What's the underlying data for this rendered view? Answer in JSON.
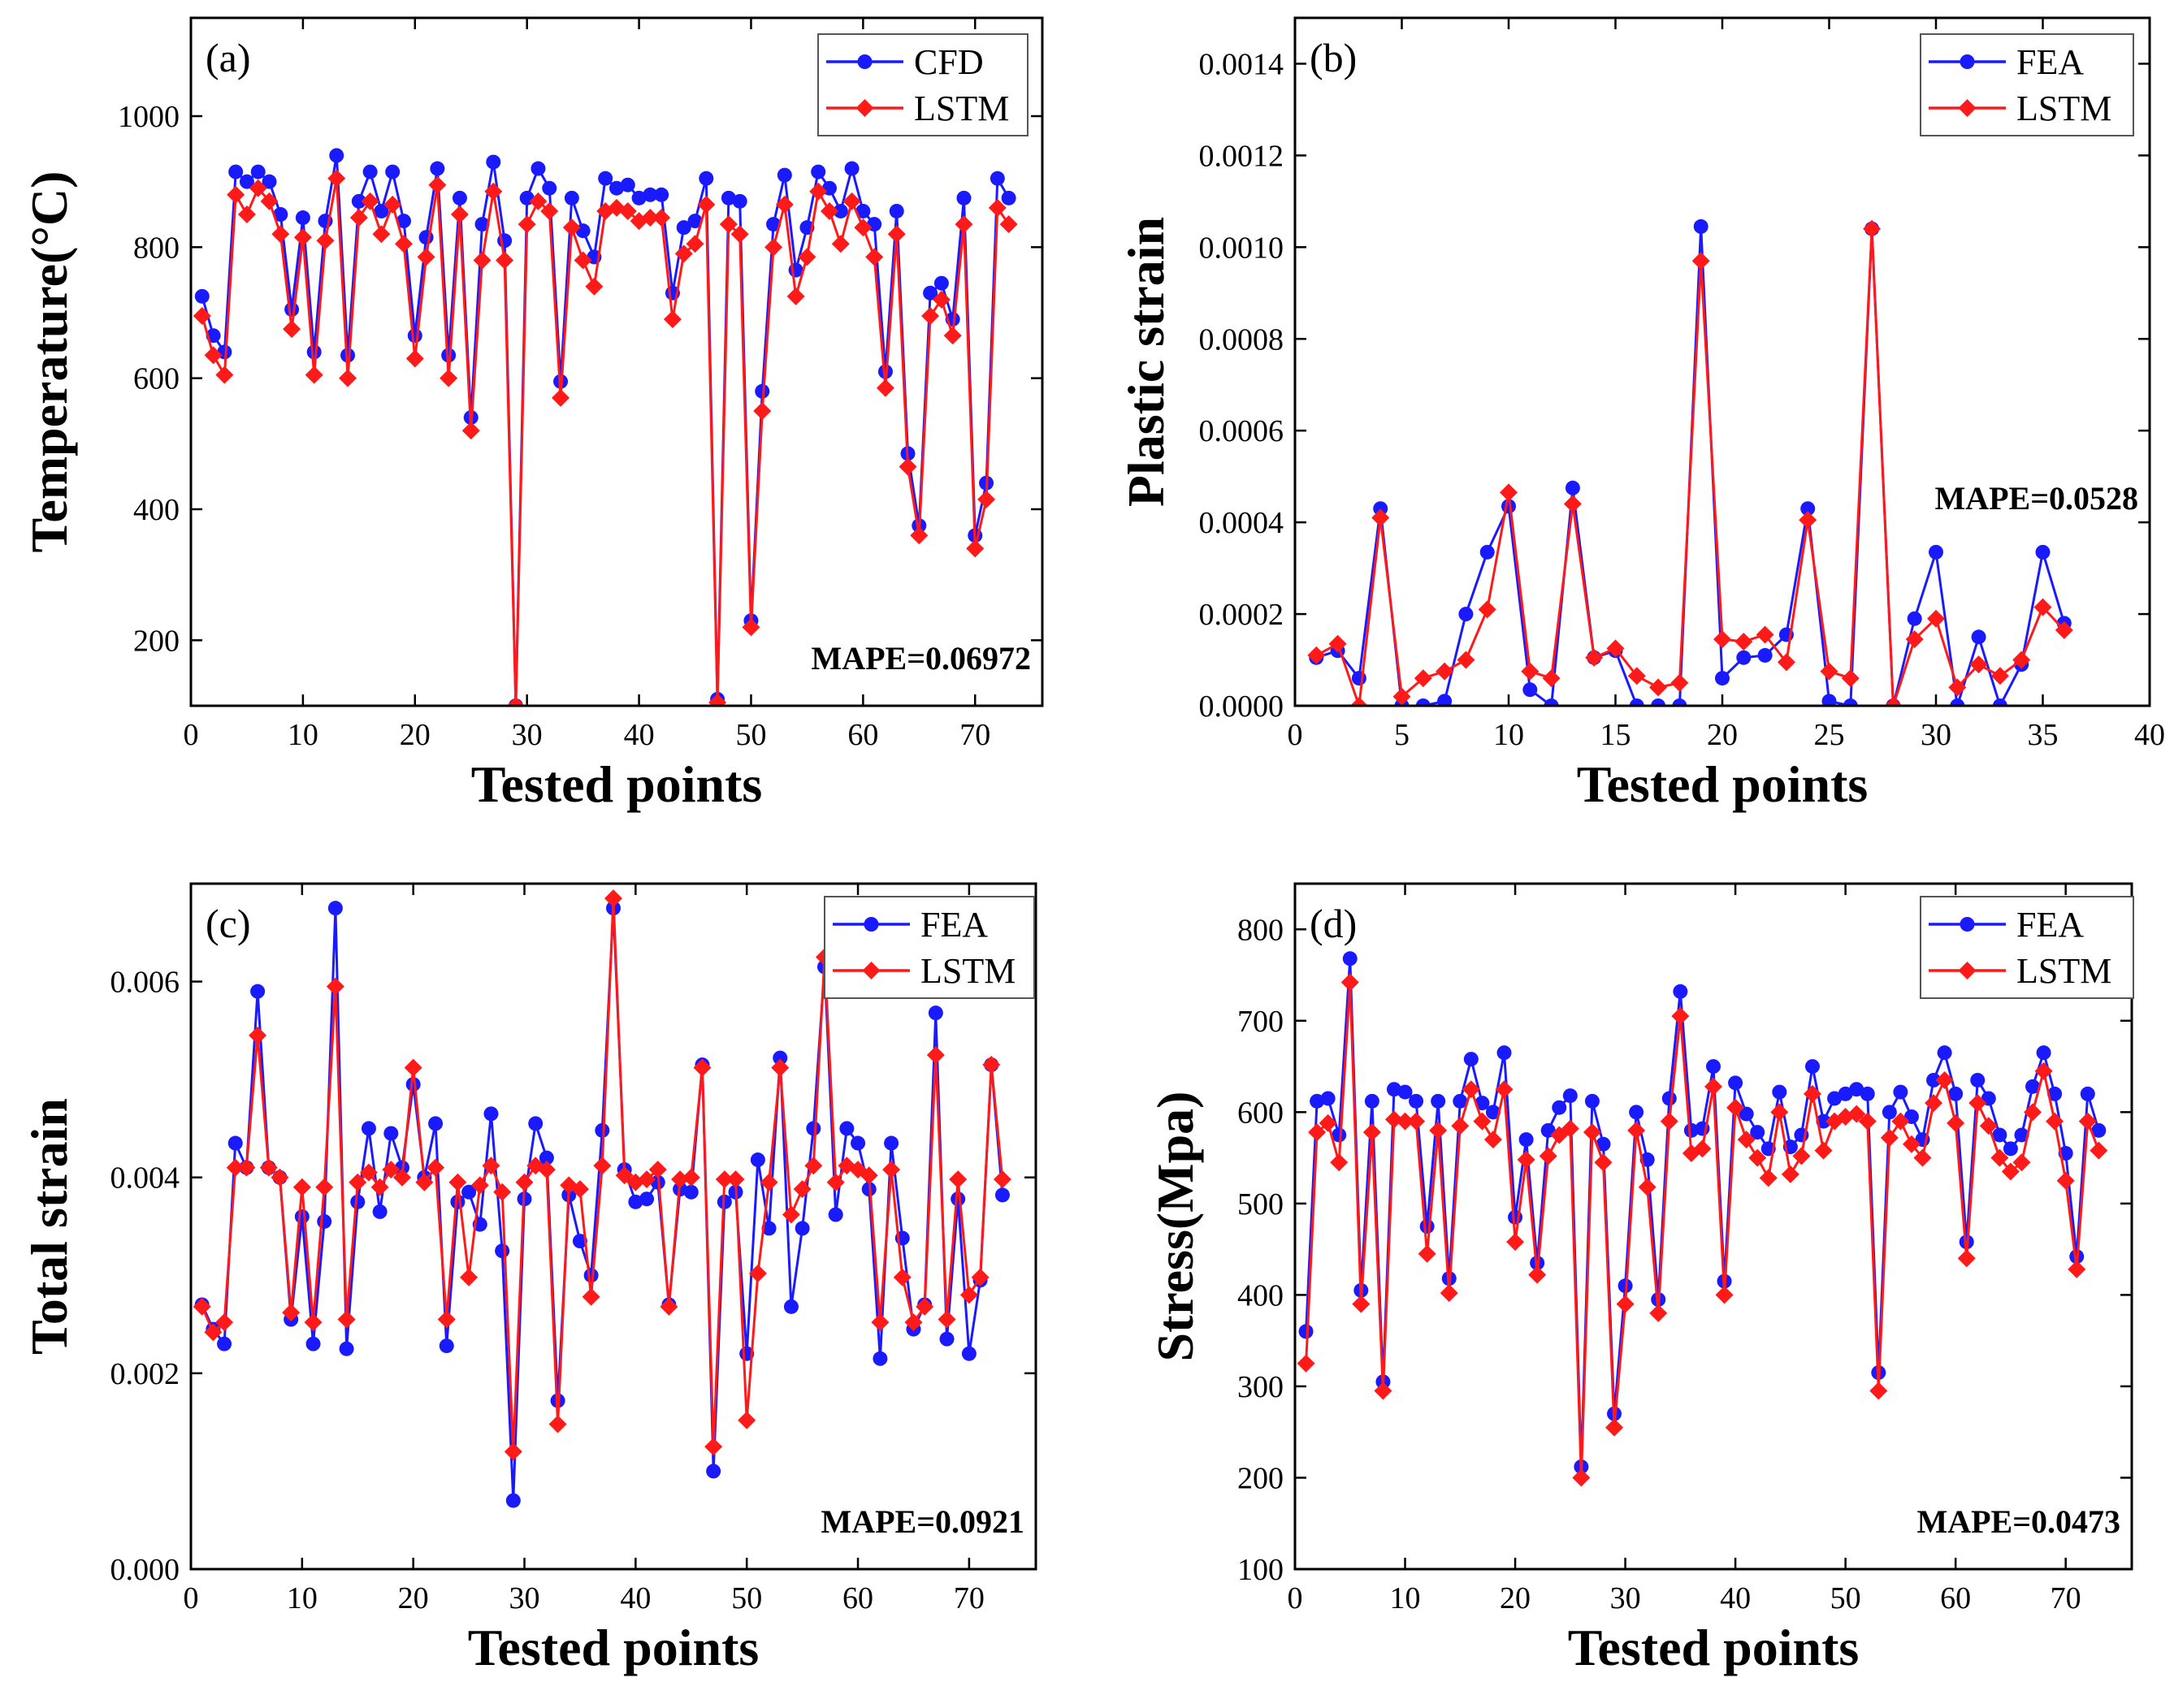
{
  "colors": {
    "series_a": "#1a1aff",
    "series_b": "#ff1a1a"
  },
  "chart_data": [
    {
      "id": "a",
      "type": "line",
      "panel_label": "(a)",
      "xlabel": "Tested points",
      "ylabel": "Temperature(°C)",
      "xlim": [
        0,
        76
      ],
      "ylim": [
        100,
        1150
      ],
      "xticks": [
        0,
        10,
        20,
        30,
        40,
        50,
        60,
        70
      ],
      "yticks": [
        200,
        400,
        600,
        800,
        1000
      ],
      "ytick_labels": [
        "200",
        "400",
        "600",
        "800",
        "1000"
      ],
      "annotation": "MAPE=0.06972",
      "series": [
        {
          "name": "CFD",
          "color": "#1a1aff",
          "marker": "circle",
          "values": [
            725,
            665,
            640,
            915,
            900,
            915,
            900,
            850,
            705,
            845,
            640,
            840,
            940,
            635,
            870,
            915,
            855,
            915,
            840,
            665,
            815,
            920,
            635,
            875,
            540,
            835,
            930,
            810,
            100,
            875,
            920,
            890,
            595,
            875,
            825,
            785,
            905,
            890,
            895,
            875,
            880,
            880,
            730,
            830,
            840,
            905,
            110,
            875,
            870,
            230,
            580,
            835,
            910,
            765,
            830,
            915,
            890,
            855,
            920,
            855,
            835,
            610,
            855,
            485,
            375,
            730,
            745,
            690,
            875,
            360,
            440,
            905,
            875
          ]
        },
        {
          "name": "LSTM",
          "color": "#ff1a1a",
          "marker": "diamond",
          "values": [
            695,
            635,
            605,
            880,
            850,
            890,
            870,
            820,
            675,
            815,
            605,
            810,
            905,
            600,
            845,
            870,
            820,
            865,
            805,
            630,
            785,
            895,
            600,
            850,
            520,
            780,
            885,
            780,
            100,
            835,
            870,
            855,
            570,
            830,
            780,
            740,
            855,
            860,
            855,
            840,
            845,
            845,
            690,
            790,
            805,
            865,
            105,
            835,
            820,
            220,
            550,
            800,
            865,
            725,
            785,
            885,
            855,
            805,
            870,
            830,
            785,
            585,
            820,
            465,
            360,
            695,
            720,
            665,
            835,
            340,
            415,
            860,
            835
          ]
        }
      ]
    },
    {
      "id": "b",
      "type": "line",
      "panel_label": "(b)",
      "xlabel": "Tested points",
      "ylabel": "Plastic strain",
      "xlim": [
        0,
        40
      ],
      "ylim": [
        0,
        0.0015
      ],
      "xticks": [
        0,
        5,
        10,
        15,
        20,
        25,
        30,
        35,
        40
      ],
      "yticks": [
        0,
        0.0002,
        0.0004,
        0.0006,
        0.0008,
        0.001,
        0.0012,
        0.0014
      ],
      "ytick_labels": [
        "0.0000",
        "0.0002",
        "0.0004",
        "0.0006",
        "0.0008",
        "0.0010",
        "0.0012",
        "0.0014"
      ],
      "annotation": "MAPE=0.0528",
      "series": [
        {
          "name": "FEA",
          "color": "#1a1aff",
          "marker": "circle",
          "values": [
            0.000105,
            0.00012,
            6e-05,
            0.00043,
            0,
            0,
            1e-05,
            0.0002,
            0.000335,
            0.000435,
            3.5e-05,
            0,
            0.000475,
            0.000105,
            0.00012,
            0,
            0,
            0,
            0.001045,
            6e-05,
            0.000105,
            0.00011,
            0.000155,
            0.00043,
            1e-05,
            0,
            0.00104,
            0,
            0.00019,
            0.000335,
            0,
            0.00015,
            0,
            9e-05,
            0.000335,
            0.00018
          ]
        },
        {
          "name": "LSTM",
          "color": "#ff1a1a",
          "marker": "diamond",
          "values": [
            0.00011,
            0.000135,
            0,
            0.00041,
            2e-05,
            6e-05,
            7.5e-05,
            0.0001,
            0.00021,
            0.000465,
            7.5e-05,
            6e-05,
            0.00044,
            0.000105,
            0.000125,
            6.5e-05,
            4e-05,
            5e-05,
            0.00097,
            0.000145,
            0.00014,
            0.000155,
            9.5e-05,
            0.000405,
            7.5e-05,
            6e-05,
            0.00104,
            0,
            0.000145,
            0.00019,
            4e-05,
            9e-05,
            6.5e-05,
            0.0001,
            0.000215,
            0.000165
          ]
        }
      ]
    },
    {
      "id": "c",
      "type": "line",
      "panel_label": "(c)",
      "xlabel": "Tested points",
      "ylabel": "Total strain",
      "xlim": [
        0,
        76
      ],
      "ylim": [
        0,
        0.007
      ],
      "xticks": [
        0,
        10,
        20,
        30,
        40,
        50,
        60,
        70
      ],
      "yticks": [
        0,
        0.002,
        0.004,
        0.006
      ],
      "ytick_labels": [
        "0.000",
        "0.002",
        "0.004",
        "0.006"
      ],
      "annotation": "MAPE=0.0921",
      "series": [
        {
          "name": "FEA",
          "color": "#1a1aff",
          "marker": "circle",
          "values": [
            0.0027,
            0.00245,
            0.0023,
            0.00435,
            0.0041,
            0.0059,
            0.0041,
            0.004,
            0.00255,
            0.0036,
            0.0023,
            0.00355,
            0.00675,
            0.00225,
            0.00375,
            0.0045,
            0.00365,
            0.00445,
            0.0041,
            0.00495,
            0.004,
            0.00455,
            0.00228,
            0.00375,
            0.00385,
            0.00352,
            0.00465,
            0.00325,
            0.0007,
            0.00378,
            0.00455,
            0.0042,
            0.00172,
            0.00382,
            0.00335,
            0.003,
            0.00448,
            0.00675,
            0.00408,
            0.00375,
            0.00378,
            0.00395,
            0.0027,
            0.00388,
            0.00385,
            0.00515,
            0.001,
            0.00375,
            0.00385,
            0.0022,
            0.00418,
            0.00348,
            0.00522,
            0.00268,
            0.00348,
            0.0045,
            0.00615,
            0.00362,
            0.0045,
            0.00435,
            0.00388,
            0.00215,
            0.00435,
            0.00338,
            0.00245,
            0.0027,
            0.00568,
            0.00235,
            0.00378,
            0.0022,
            0.00295,
            0.00515,
            0.00382
          ]
        },
        {
          "name": "LSTM",
          "color": "#ff1a1a",
          "marker": "diamond",
          "values": [
            0.00268,
            0.00242,
            0.00252,
            0.0041,
            0.0041,
            0.00545,
            0.0041,
            0.004,
            0.00262,
            0.0039,
            0.00252,
            0.0039,
            0.00595,
            0.00255,
            0.00395,
            0.00405,
            0.0039,
            0.00408,
            0.004,
            0.00512,
            0.00395,
            0.0041,
            0.00255,
            0.00395,
            0.00298,
            0.00392,
            0.00412,
            0.00385,
            0.0012,
            0.00395,
            0.00412,
            0.00408,
            0.00148,
            0.00392,
            0.00388,
            0.00278,
            0.00412,
            0.00685,
            0.00402,
            0.00395,
            0.00398,
            0.00408,
            0.00268,
            0.00398,
            0.004,
            0.00512,
            0.00125,
            0.00398,
            0.00398,
            0.00152,
            0.00302,
            0.00395,
            0.00512,
            0.00362,
            0.00388,
            0.00412,
            0.00625,
            0.00395,
            0.00412,
            0.00408,
            0.00402,
            0.00252,
            0.00408,
            0.00298,
            0.00252,
            0.00268,
            0.00525,
            0.00255,
            0.00398,
            0.0028,
            0.00298,
            0.00515,
            0.00398
          ]
        }
      ]
    },
    {
      "id": "d",
      "type": "line",
      "panel_label": "(d)",
      "xlabel": "Tested points",
      "ylabel": "Stress(Mpa)",
      "xlim": [
        0,
        76
      ],
      "ylim": [
        100,
        850
      ],
      "xticks": [
        0,
        10,
        20,
        30,
        40,
        50,
        60,
        70
      ],
      "yticks": [
        100,
        200,
        300,
        400,
        500,
        600,
        700,
        800
      ],
      "ytick_labels": [
        "100",
        "200",
        "300",
        "400",
        "500",
        "600",
        "700",
        "800"
      ],
      "annotation": "MAPE=0.0473",
      "series": [
        {
          "name": "FEA",
          "color": "#1a1aff",
          "marker": "circle",
          "values": [
            360,
            612,
            615,
            575,
            768,
            405,
            612,
            305,
            625,
            622,
            612,
            475,
            612,
            418,
            612,
            658,
            610,
            600,
            665,
            485,
            570,
            435,
            580,
            605,
            618,
            212,
            612,
            565,
            270,
            410,
            600,
            548,
            395,
            615,
            732,
            580,
            582,
            650,
            415,
            632,
            598,
            578,
            560,
            622,
            562,
            575,
            650,
            590,
            615,
            620,
            625,
            620,
            315,
            600,
            622,
            595,
            570,
            635,
            665,
            620,
            458,
            635,
            615,
            575,
            560,
            575,
            628,
            665,
            620,
            555,
            442,
            620,
            580
          ]
        },
        {
          "name": "LSTM",
          "color": "#ff1a1a",
          "marker": "diamond",
          "values": [
            325,
            578,
            588,
            545,
            742,
            390,
            578,
            295,
            592,
            590,
            590,
            445,
            580,
            402,
            585,
            625,
            590,
            570,
            625,
            458,
            548,
            422,
            552,
            575,
            582,
            200,
            578,
            545,
            255,
            390,
            580,
            518,
            380,
            590,
            705,
            555,
            560,
            628,
            400,
            605,
            570,
            550,
            528,
            600,
            532,
            552,
            620,
            558,
            590,
            595,
            598,
            590,
            295,
            572,
            590,
            565,
            550,
            610,
            635,
            588,
            440,
            610,
            585,
            550,
            535,
            545,
            600,
            645,
            590,
            525,
            428,
            590,
            558
          ]
        }
      ]
    }
  ]
}
